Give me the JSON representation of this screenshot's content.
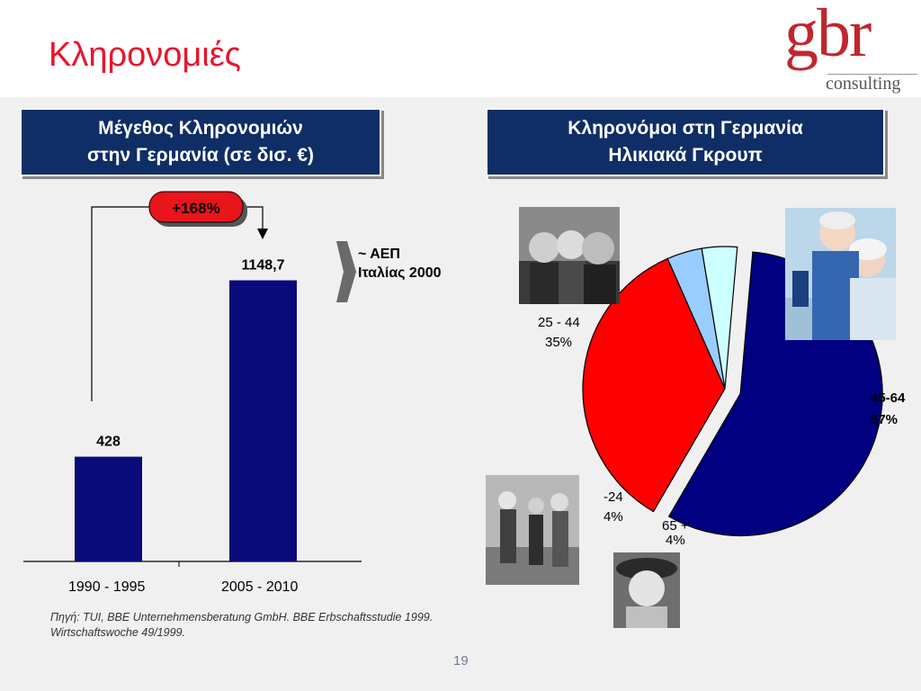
{
  "slide": {
    "title": "Κληρονομιές",
    "page_number": "19",
    "source": "Πηγή: TUI, BBE Unternehmensberatung GmbH. BBE Erbschaftsstudie 1999.\nWirtschaftswoche 49/1999."
  },
  "logo": {
    "main": "gbr",
    "sub": "consulting"
  },
  "left_panel": {
    "heading": "Μέγεθος Κληρονομιών\nστην Γερμανία (σε δισ. €)"
  },
  "right_panel": {
    "heading": "Κληρονόμοι στη Γερμανία\nΗλικιακά Γκρουπ"
  },
  "growth_badge": "+168%",
  "annotation": "~ ΑΕΠ\nΙταλίας 2000",
  "colors": {
    "title": "#e8152d",
    "heading_bg": "#0f2e66",
    "bar": "#0a0a7a",
    "badge": "#e8151b",
    "pie_45_64": "#000080",
    "pie_25_44": "#ff0000",
    "pie_under24": "#99ccff",
    "pie_65plus": "#ccffff"
  },
  "chart_data": [
    {
      "type": "bar",
      "categories": [
        "1990 - 1995",
        "2005 - 2010"
      ],
      "values": [
        428,
        1148.7
      ],
      "value_labels": [
        "428",
        "1148,7"
      ],
      "ylim": [
        0,
        1250
      ]
    },
    {
      "type": "pie",
      "slices": [
        {
          "label": "45-64",
          "pct_label": "57%",
          "value": 57
        },
        {
          "label": "25 - 44",
          "pct_label": "35%",
          "value": 35
        },
        {
          "label": "-24",
          "pct_label": "4%",
          "value": 4
        },
        {
          "label": "65 +",
          "pct_label": "4%",
          "value": 4
        }
      ]
    }
  ],
  "photos": [
    "family-photo",
    "senior-couple-photo",
    "youth-group-photo",
    "elderly-woman-photo"
  ]
}
